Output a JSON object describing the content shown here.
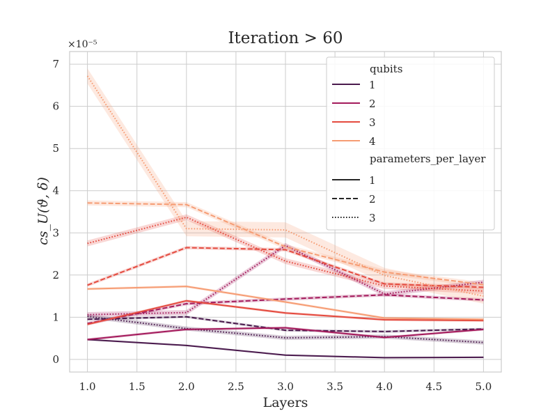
{
  "chart_data": {
    "type": "line",
    "title": "Iteration > 60",
    "xlabel": "Layers",
    "ylabel": "cs_U(ϑ, δ)",
    "y_multiplier": "×10⁻⁵",
    "xlim": [
      0.82,
      5.18
    ],
    "ylim": [
      -0.3,
      7.3
    ],
    "x_ticks": [
      1.0,
      1.5,
      2.0,
      2.5,
      3.0,
      3.5,
      4.0,
      4.5,
      5.0
    ],
    "x_tick_labels": [
      "1.0",
      "1.5",
      "2.0",
      "2.5",
      "3.0",
      "3.5",
      "4.0",
      "4.5",
      "5.0"
    ],
    "y_ticks": [
      0,
      1,
      2,
      3,
      4,
      5,
      6,
      7
    ],
    "y_tick_labels": [
      "0",
      "1",
      "2",
      "3",
      "4",
      "5",
      "6",
      "7"
    ],
    "grid": true,
    "legend_position": "top-right",
    "x": [
      1,
      2,
      3,
      4,
      5
    ],
    "legend": {
      "hue_title": "qubits",
      "hue_entries": [
        {
          "label": "1",
          "color": "#4a1a4d"
        },
        {
          "label": "2",
          "color": "#a3195b"
        },
        {
          "label": "3",
          "color": "#e44a3e"
        },
        {
          "label": "4",
          "color": "#f69c73"
        }
      ],
      "style_title": "parameters_per_layer",
      "style_entries": [
        {
          "label": "1",
          "dash": "solid"
        },
        {
          "label": "2",
          "dash": "dashed"
        },
        {
          "label": "3",
          "dash": "dotted"
        }
      ]
    },
    "series": [
      {
        "qubits": "1",
        "parameters_per_layer": "1",
        "color": "#4a1a4d",
        "dash": "solid",
        "values": [
          0.47,
          0.33,
          0.1,
          0.04,
          0.05
        ],
        "band": 0.02
      },
      {
        "qubits": "1",
        "parameters_per_layer": "2",
        "color": "#4a1a4d",
        "dash": "dashed",
        "values": [
          0.95,
          1.01,
          0.69,
          0.66,
          0.72
        ],
        "band": 0.03
      },
      {
        "qubits": "1",
        "parameters_per_layer": "3",
        "color": "#4a1a4d",
        "dash": "dotted",
        "values": [
          1.02,
          0.73,
          0.51,
          0.54,
          0.4
        ],
        "band": 0.05
      },
      {
        "qubits": "2",
        "parameters_per_layer": "1",
        "color": "#a3195b",
        "dash": "solid",
        "values": [
          0.47,
          0.71,
          0.75,
          0.52,
          0.71
        ],
        "band": 0.03
      },
      {
        "qubits": "2",
        "parameters_per_layer": "2",
        "color": "#a3195b",
        "dash": "dashed",
        "values": [
          0.85,
          1.32,
          1.43,
          1.53,
          1.41
        ],
        "band": 0.04
      },
      {
        "qubits": "2",
        "parameters_per_layer": "3",
        "color": "#a3195b",
        "dash": "dotted",
        "values": [
          1.06,
          1.11,
          2.7,
          1.55,
          1.83
        ],
        "band": 0.06
      },
      {
        "qubits": "3",
        "parameters_per_layer": "1",
        "color": "#e44a3e",
        "dash": "solid",
        "values": [
          0.83,
          1.39,
          1.1,
          0.94,
          0.92
        ],
        "band": 0.03
      },
      {
        "qubits": "3",
        "parameters_per_layer": "2",
        "color": "#e44a3e",
        "dash": "dashed",
        "values": [
          1.76,
          2.65,
          2.6,
          1.79,
          1.71
        ],
        "band": 0.04
      },
      {
        "qubits": "3",
        "parameters_per_layer": "3",
        "color": "#e44a3e",
        "dash": "dotted",
        "values": [
          2.75,
          3.37,
          2.33,
          1.74,
          1.62
        ],
        "band": 0.07
      },
      {
        "qubits": "4",
        "parameters_per_layer": "1",
        "color": "#f69c73",
        "dash": "solid",
        "values": [
          1.67,
          1.73,
          1.36,
          0.98,
          0.95
        ],
        "band": 0.03
      },
      {
        "qubits": "4",
        "parameters_per_layer": "2",
        "color": "#f69c73",
        "dash": "dashed",
        "values": [
          3.71,
          3.67,
          2.67,
          2.07,
          1.77
        ],
        "band": 0.06
      },
      {
        "qubits": "4",
        "parameters_per_layer": "3",
        "color": "#f69c73",
        "dash": "dotted",
        "values": [
          6.72,
          3.1,
          3.07,
          1.99,
          1.5
        ],
        "band": 0.18
      }
    ]
  }
}
